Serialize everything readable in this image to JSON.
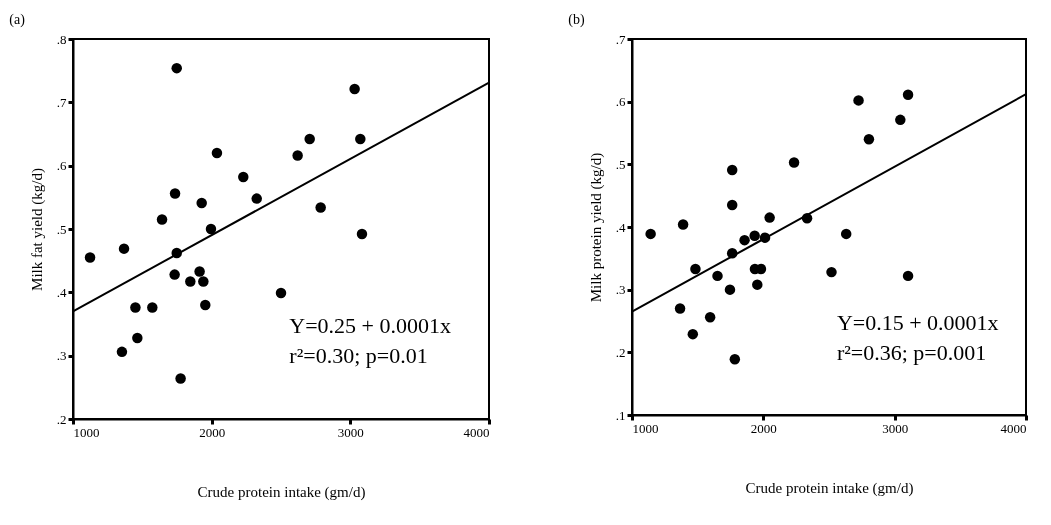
{
  "chart_data": [
    {
      "type": "scatter",
      "title": "(a)",
      "xlabel": "Crude protein intake (gm/d)",
      "ylabel": "Milk fat yield (kg/d)",
      "xlim": [
        1000,
        4000
      ],
      "ylim": [
        0.2,
        0.8
      ],
      "xticks": [
        1000,
        2000,
        3000,
        4000
      ],
      "yticks": [
        {
          "value": 0.2,
          "label": ".2"
        },
        {
          "value": 0.3,
          "label": ".3"
        },
        {
          "value": 0.4,
          "label": ".4"
        },
        {
          "value": 0.5,
          "label": ".5"
        },
        {
          "value": 0.6,
          "label": ".6"
        },
        {
          "value": 0.7,
          "label": ".7"
        },
        {
          "value": 0.8,
          "label": ".8"
        }
      ],
      "grid": false,
      "series": [
        {
          "marker": "circle",
          "color": "#000000",
          "x": [
            1123,
            1368,
            1450,
            1464,
            1353,
            1572,
            1642,
            1736,
            1748,
            1748,
            1733,
            1776,
            1846,
            1913,
            1940,
            1954,
            1928,
            1995,
            2038,
            2228,
            2325,
            2500,
            2620,
            2707,
            2786,
            3031,
            3072,
            3084
          ],
          "values": [
            0.455,
            0.469,
            0.376,
            0.328,
            0.306,
            0.376,
            0.515,
            0.556,
            0.754,
            0.462,
            0.428,
            0.264,
            0.417,
            0.433,
            0.417,
            0.38,
            0.541,
            0.5,
            0.62,
            0.582,
            0.548,
            0.399,
            0.616,
            0.642,
            0.534,
            0.721,
            0.642,
            0.492
          ]
        },
        {
          "type": "line",
          "color": "#000000",
          "x": [
            1000,
            4000
          ],
          "values": [
            0.37,
            0.731
          ]
        }
      ],
      "annotations": [
        "Y=0.25 + 0.0001x",
        "r²=0.30; p=0.01"
      ]
    },
    {
      "type": "scatter",
      "title": "(b)",
      "xlabel": "Crude protein intake (gm/d)",
      "ylabel": "Milk protein yield (kg/d)",
      "xlim": [
        1000,
        4000
      ],
      "ylim": [
        0.1,
        0.7
      ],
      "xticks": [
        1000,
        2000,
        3000,
        4000
      ],
      "yticks": [
        {
          "value": 0.1,
          "label": ".1"
        },
        {
          "value": 0.2,
          "label": ".2"
        },
        {
          "value": 0.3,
          "label": ".3"
        },
        {
          "value": 0.4,
          "label": ".4"
        },
        {
          "value": 0.5,
          "label": ".5"
        },
        {
          "value": 0.6,
          "label": ".6"
        },
        {
          "value": 0.7,
          "label": ".7"
        }
      ],
      "grid": false,
      "series": [
        {
          "marker": "circle",
          "color": "#000000",
          "x": [
            1142,
            1389,
            1483,
            1366,
            1463,
            1595,
            1651,
            1746,
            1763,
            1763,
            1763,
            1783,
            1857,
            1934,
            2013,
            2048,
            1936,
            1982,
            1954,
            2234,
            2333,
            2519,
            2631,
            2725,
            2804,
            3043,
            3102,
            3102
          ],
          "values": [
            0.389,
            0.404,
            0.333,
            0.27,
            0.229,
            0.256,
            0.322,
            0.3,
            0.358,
            0.435,
            0.491,
            0.189,
            0.379,
            0.386,
            0.383,
            0.415,
            0.333,
            0.333,
            0.308,
            0.503,
            0.414,
            0.328,
            0.389,
            0.602,
            0.54,
            0.571,
            0.611,
            0.322
          ]
        },
        {
          "type": "line",
          "color": "#000000",
          "x": [
            1000,
            4000
          ],
          "values": [
            0.265,
            0.612
          ]
        }
      ],
      "annotations": [
        "Y=0.15 + 0.0001x",
        "r²=0.36; p=0.001"
      ]
    }
  ]
}
